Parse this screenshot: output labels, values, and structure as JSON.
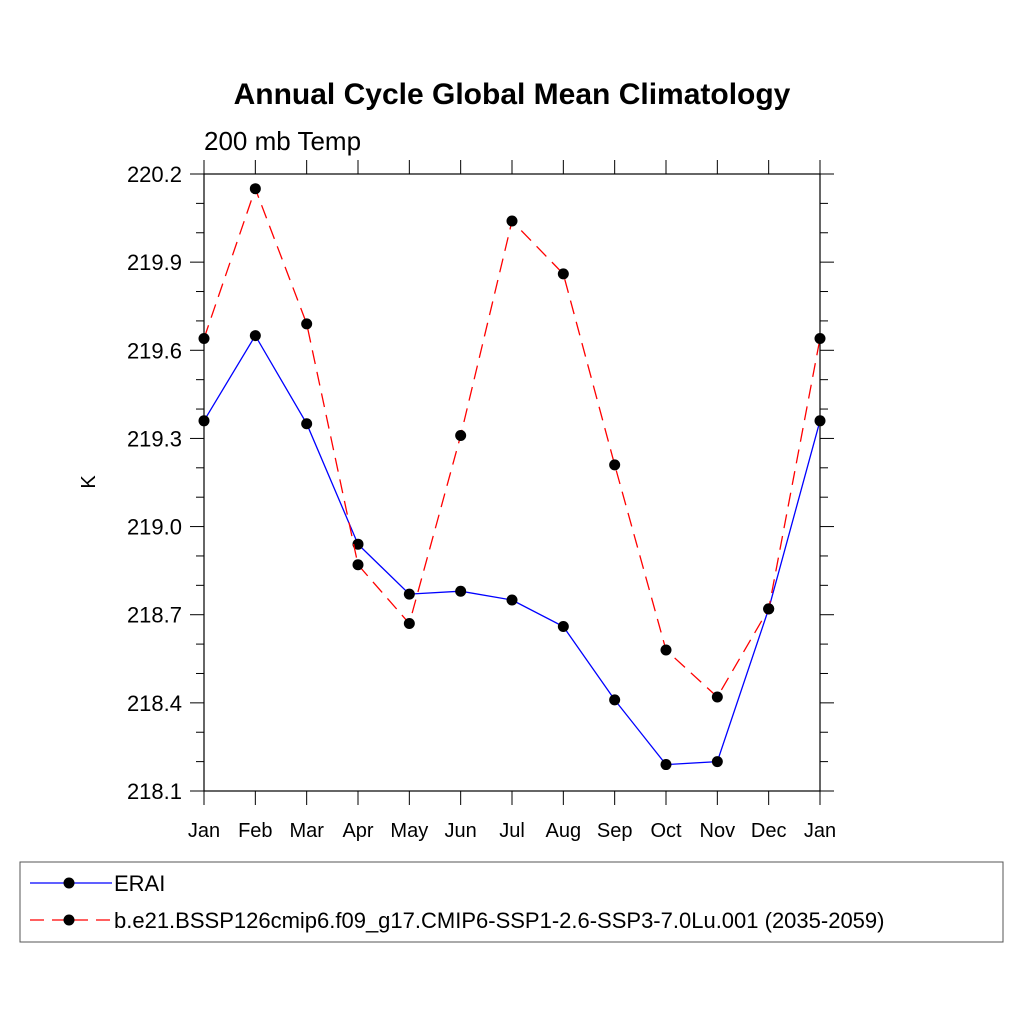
{
  "chart_data": {
    "type": "line",
    "title": "Annual Cycle Global Mean Climatology",
    "subtitle": "200 mb Temp",
    "xlabel": "",
    "ylabel": "K",
    "categories": [
      "Jan",
      "Feb",
      "Mar",
      "Apr",
      "May",
      "Jun",
      "Jul",
      "Aug",
      "Sep",
      "Oct",
      "Nov",
      "Dec",
      "Jan"
    ],
    "yticks": [
      "220.2",
      "219.9",
      "219.6",
      "219.3",
      "219.0",
      "218.7",
      "218.4",
      "218.1"
    ],
    "ylim": [
      218.1,
      220.2
    ],
    "series": [
      {
        "name": "ERAI",
        "color": "#0000ff",
        "dash": "solid",
        "values": [
          219.36,
          219.65,
          219.35,
          218.94,
          218.77,
          218.78,
          218.75,
          218.66,
          218.41,
          218.19,
          218.2,
          218.72,
          219.36
        ]
      },
      {
        "name": "b.e21.BSSP126cmip6.f09_g17.CMIP6-SSP1-2.6-SSP3-7.0Lu.001 (2035-2059)",
        "color": "#ff0000",
        "dash": "dashed",
        "values": [
          219.64,
          220.15,
          219.69,
          218.87,
          218.67,
          219.31,
          220.04,
          219.86,
          219.21,
          218.58,
          218.42,
          218.72,
          219.64
        ]
      }
    ],
    "grid": false,
    "legend_position": "bottom"
  }
}
